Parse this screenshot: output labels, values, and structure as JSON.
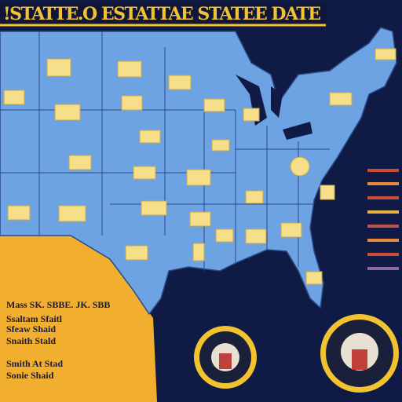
{
  "header": {
    "title": "!STATTE.O ESTATTAE STATEE DATE"
  },
  "legend": {
    "rows": [
      "Mass  SK. SBBE. JK. SBB",
      "Ssaltam  Sfaitl",
      "Sfeaw  Shaid",
      "Snaith  Stald",
      "Smith  At Stad",
      "Sonie  Shaid"
    ]
  }
}
